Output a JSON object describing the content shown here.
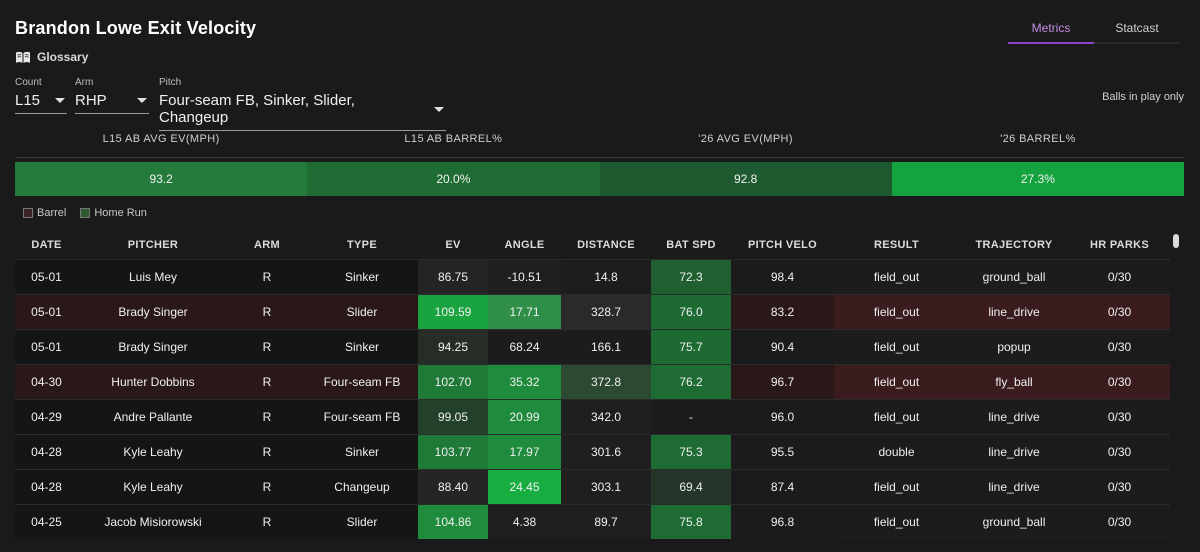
{
  "header": {
    "title": "Brandon Lowe Exit Velocity",
    "glossary_label": "Glossary"
  },
  "tabs": [
    {
      "label": "Metrics",
      "active": true
    },
    {
      "label": "Statcast",
      "active": false
    }
  ],
  "filters": {
    "count": {
      "label": "Count",
      "value": "L15"
    },
    "arm": {
      "label": "Arm",
      "value": "RHP"
    },
    "pitch": {
      "label": "Pitch",
      "value": "Four-seam FB, Sinker, Slider, Changeup"
    }
  },
  "balls_in_play_label": "Balls in play only",
  "summary": {
    "headers": [
      "L15 AB AVG EV(MPH)",
      "L15 AB BARREL%",
      "'26 AVG EV(MPH)",
      "'26 BARREL%"
    ],
    "values": [
      "93.2",
      "20.0%",
      "92.8",
      "27.3%"
    ],
    "colors": [
      "#237a3a",
      "#1f6b34",
      "#1e5a2f",
      "#15a33f"
    ]
  },
  "legend": [
    {
      "label": "Barrel",
      "color": "#3a2424"
    },
    {
      "label": "Home Run",
      "color": "#2f5a34"
    }
  ],
  "table": {
    "columns": [
      "DATE",
      "PITCHER",
      "ARM",
      "TYPE",
      "EV",
      "ANGLE",
      "DISTANCE",
      "BAT SPD",
      "PITCH VELO",
      "RESULT",
      "TRAJECTORY",
      "HR PARKS"
    ],
    "rows": [
      {
        "cells": [
          "05-01",
          "Luis Mey",
          "R",
          "Sinker",
          "86.75",
          "-10.51",
          "14.8",
          "72.3",
          "98.4",
          "field_out",
          "ground_ball",
          "0/30"
        ],
        "barrel": false
      },
      {
        "cells": [
          "05-01",
          "Brady Singer",
          "R",
          "Slider",
          "109.59",
          "17.71",
          "328.7",
          "76.0",
          "83.2",
          "field_out",
          "line_drive",
          "0/30"
        ],
        "barrel": true
      },
      {
        "cells": [
          "05-01",
          "Brady Singer",
          "R",
          "Sinker",
          "94.25",
          "68.24",
          "166.1",
          "75.7",
          "90.4",
          "field_out",
          "popup",
          "0/30"
        ],
        "barrel": false
      },
      {
        "cells": [
          "04-30",
          "Hunter Dobbins",
          "R",
          "Four-seam FB",
          "102.70",
          "35.32",
          "372.8",
          "76.2",
          "96.7",
          "field_out",
          "fly_ball",
          "0/30"
        ],
        "barrel": true
      },
      {
        "cells": [
          "04-29",
          "Andre Pallante",
          "R",
          "Four-seam FB",
          "99.05",
          "20.99",
          "342.0",
          "-",
          "96.0",
          "field_out",
          "line_drive",
          "0/30"
        ],
        "barrel": false
      },
      {
        "cells": [
          "04-28",
          "Kyle Leahy",
          "R",
          "Sinker",
          "103.77",
          "17.97",
          "301.6",
          "75.3",
          "95.5",
          "double",
          "line_drive",
          "0/30"
        ],
        "barrel": false
      },
      {
        "cells": [
          "04-28",
          "Kyle Leahy",
          "R",
          "Changeup",
          "88.40",
          "24.45",
          "303.1",
          "69.4",
          "87.4",
          "field_out",
          "line_drive",
          "0/30"
        ],
        "barrel": false
      },
      {
        "cells": [
          "04-25",
          "Jacob Misiorowski",
          "R",
          "Slider",
          "104.86",
          "4.38",
          "89.7",
          "75.8",
          "96.8",
          "field_out",
          "ground_ball",
          "0/30"
        ],
        "barrel": false
      }
    ],
    "cell_colors": [
      [
        "#151515",
        "#151515",
        "#151515",
        "#151515",
        "#242424",
        "#1f1f1f",
        "#1d1d1d",
        "#1f5f30",
        "#1b1b1b",
        "#1c1c1c",
        "#1c1c1c",
        "#1c1c1c"
      ],
      [
        "#2a1818",
        "#2a1818",
        "#2a1818",
        "#2a1818",
        "#1aa43f",
        "#2f8f48",
        "#2a2a2a",
        "#1d6a33",
        "#2a1818",
        "#3a1c1e",
        "#3a1c1e",
        "#3a1c1e"
      ],
      [
        "#151515",
        "#151515",
        "#151515",
        "#151515",
        "#262d27",
        "#1c1c1c",
        "#1c1c1c",
        "#1d6a33",
        "#1b1b1b",
        "#1c1c1c",
        "#1c1c1c",
        "#1c1c1c"
      ],
      [
        "#2a1818",
        "#2a1818",
        "#2a1818",
        "#2a1818",
        "#1f7a37",
        "#1f8b3c",
        "#2c4a32",
        "#1f6b34",
        "#2a1818",
        "#3a1c1e",
        "#3a1c1e",
        "#3a1c1e"
      ],
      [
        "#151515",
        "#151515",
        "#151515",
        "#151515",
        "#22402a",
        "#1f8b3c",
        "#1f1f1f",
        "#1b1b1b",
        "#1b1b1b",
        "#1c1c1c",
        "#1c1c1c",
        "#1c1c1c"
      ],
      [
        "#151515",
        "#151515",
        "#151515",
        "#151515",
        "#1e7a36",
        "#1f8b3c",
        "#1f1f1f",
        "#1f6b34",
        "#1b1b1b",
        "#1c1c1c",
        "#1c1c1c",
        "#1c1c1c"
      ],
      [
        "#151515",
        "#151515",
        "#151515",
        "#151515",
        "#252525",
        "#18ad40",
        "#1f1f1f",
        "#26352a",
        "#1b1b1b",
        "#1c1c1c",
        "#1c1c1c",
        "#1c1c1c"
      ],
      [
        "#151515",
        "#151515",
        "#151515",
        "#151515",
        "#1f8b3c",
        "#1f1f1f",
        "#1f1f1f",
        "#1f6b34",
        "#1b1b1b",
        "#1c1c1c",
        "#1c1c1c",
        "#1c1c1c"
      ]
    ]
  }
}
